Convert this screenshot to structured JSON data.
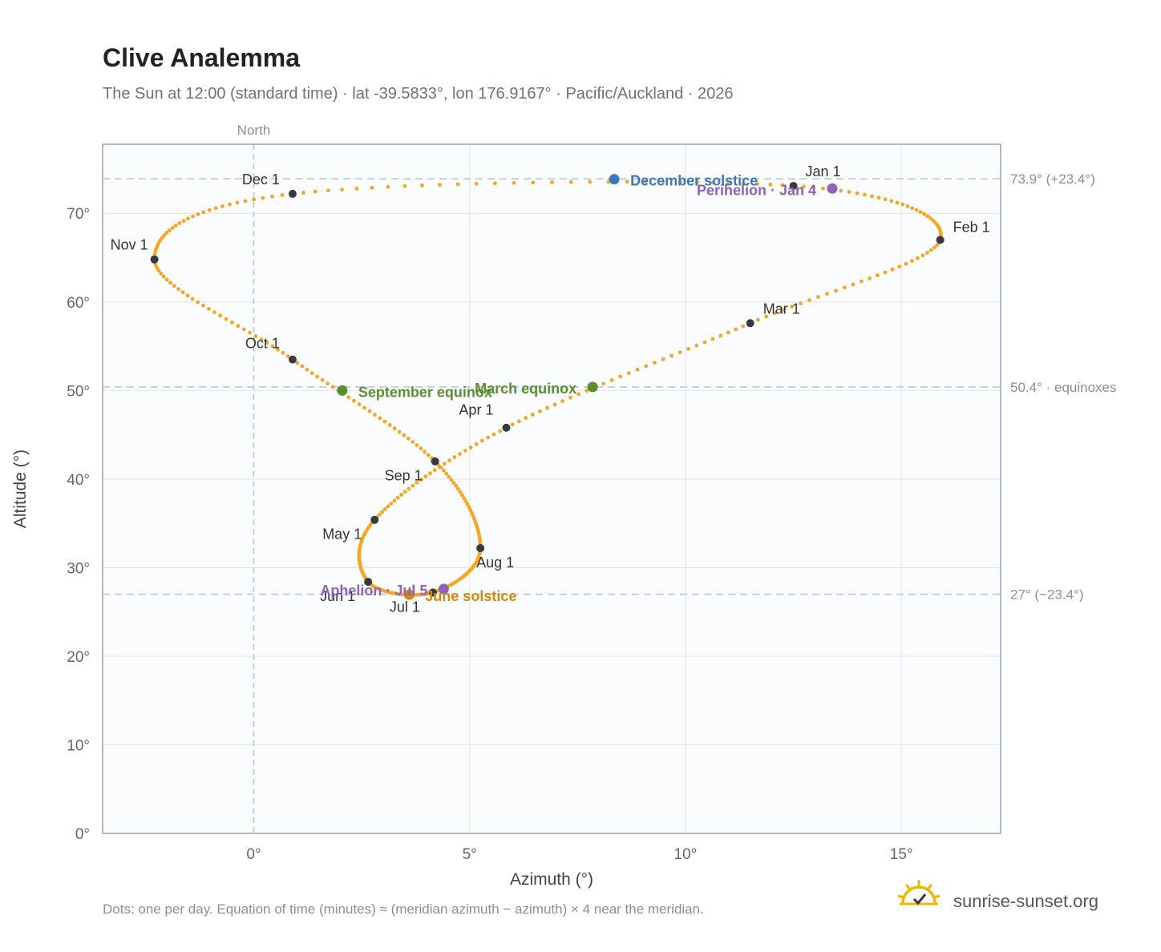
{
  "header": {
    "title": "Clive Analemma",
    "subtitle": "The Sun at 12:00 (standard time) · lat -39.5833°, lon 176.9167° · Pacific/Auckland · 2026"
  },
  "footer": {
    "note": "Dots: one per day. Equation of time (minutes) ≈ (meridian azimuth − azimuth) × 4 near the meridian.",
    "brand": "sunrise-sunset.org"
  },
  "chart_data": {
    "type": "scatter",
    "xlabel": "Azimuth (°)",
    "ylabel": "Altitude (°)",
    "xlim": [
      -3.5,
      17.3
    ],
    "ylim": [
      0,
      77.8
    ],
    "x_ticks": [
      {
        "value": 0,
        "label": "0°"
      },
      {
        "value": 5,
        "label": "5°"
      },
      {
        "value": 10,
        "label": "10°"
      },
      {
        "value": 15,
        "label": "15°"
      }
    ],
    "y_ticks": [
      {
        "value": 0,
        "label": "0°"
      },
      {
        "value": 10,
        "label": "10°"
      },
      {
        "value": 20,
        "label": "20°"
      },
      {
        "value": 30,
        "label": "30°"
      },
      {
        "value": 40,
        "label": "40°"
      },
      {
        "value": 50,
        "label": "50°"
      },
      {
        "value": 60,
        "label": "60°"
      },
      {
        "value": 70,
        "label": "70°"
      }
    ],
    "meridian": {
      "x": 0,
      "label": "North"
    },
    "reference_lines": [
      {
        "y": 73.9,
        "label": "73.9° (+23.4°)"
      },
      {
        "y": 50.4,
        "label": "50.4° · equinoxes"
      },
      {
        "y": 27.0,
        "label": "27° (−23.4°)"
      }
    ],
    "grid": true,
    "colors": {
      "path": "#f5a623",
      "month": "#333a40",
      "solstice_dec": "#3a78c0",
      "solstice_jun": "#d08a12",
      "equinox": "#5b8f2e",
      "apsis": "#8e63b5",
      "plot_bg": "#fafcfe",
      "grid": "#e3e8ee",
      "ref_line": "#b7c3d0"
    },
    "months": [
      {
        "label": "Jan 1",
        "x": 12.5,
        "y": 73.1
      },
      {
        "label": "Feb 1",
        "x": 15.9,
        "y": 67.0
      },
      {
        "label": "Mar 1",
        "x": 11.5,
        "y": 57.6
      },
      {
        "label": "Apr 1",
        "x": 5.85,
        "y": 45.8
      },
      {
        "label": "May 1",
        "x": 2.8,
        "y": 35.4
      },
      {
        "label": "Jun 1",
        "x": 2.65,
        "y": 28.4
      },
      {
        "label": "Jul 1",
        "x": 4.15,
        "y": 27.2
      },
      {
        "label": "Aug 1",
        "x": 5.25,
        "y": 32.2
      },
      {
        "label": "Sep 1",
        "x": 4.2,
        "y": 42.0
      },
      {
        "label": "Oct 1",
        "x": 0.9,
        "y": 53.5
      },
      {
        "label": "Nov 1",
        "x": -2.3,
        "y": 64.8
      },
      {
        "label": "Dec 1",
        "x": 0.9,
        "y": 72.2
      }
    ],
    "events": [
      {
        "label": "December solstice",
        "x": 8.35,
        "y": 73.85,
        "kind": "solstice_dec"
      },
      {
        "label": "Perihelion · Jan 4",
        "x": 13.4,
        "y": 72.8,
        "kind": "apsis"
      },
      {
        "label": "March equinox",
        "x": 7.85,
        "y": 50.4,
        "kind": "equinox"
      },
      {
        "label": "September equinox",
        "x": 2.05,
        "y": 50.0,
        "kind": "equinox"
      },
      {
        "label": "June solstice",
        "x": 3.6,
        "y": 26.95,
        "kind": "solstice_jun"
      },
      {
        "label": "Aphelion · Jul 5",
        "x": 4.4,
        "y": 27.6,
        "kind": "apsis"
      }
    ]
  }
}
